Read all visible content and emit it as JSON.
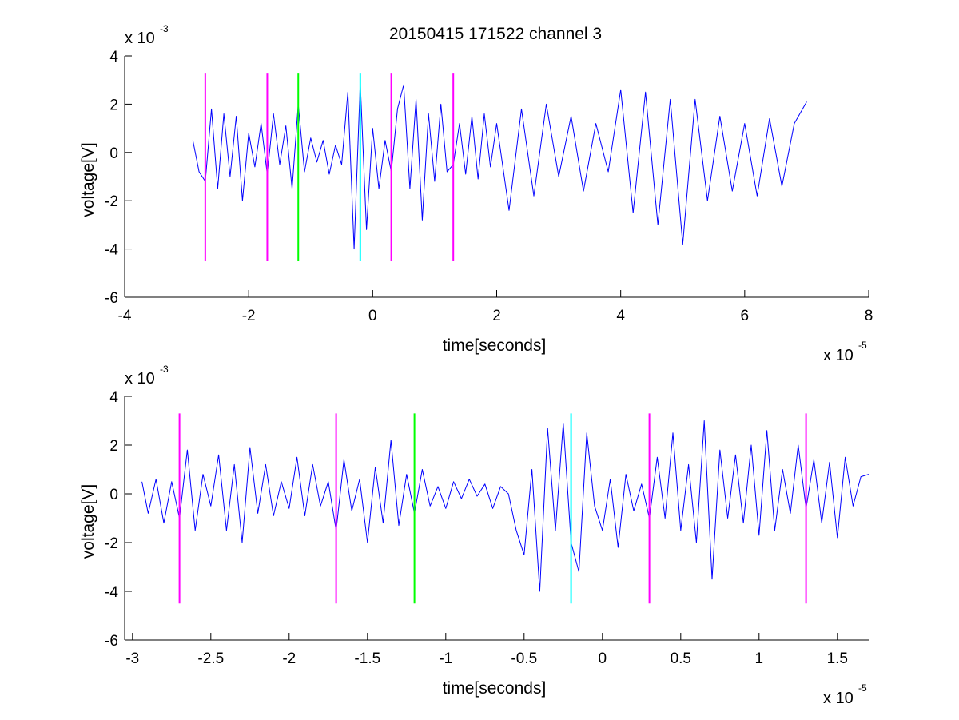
{
  "title": "20150415 171522 channel 3",
  "chart_data": [
    {
      "type": "line",
      "xlabel": "time[seconds]",
      "ylabel": "voltage[V]",
      "x_multiplier_label": "x 10",
      "x_multiplier_exp": "-5",
      "y_multiplier_label": "x 10",
      "y_multiplier_exp": "-3",
      "xlim": [
        -4,
        8
      ],
      "ylim": [
        -6,
        4
      ],
      "xticks": [
        -4,
        -2,
        0,
        2,
        4,
        6,
        8
      ],
      "xtick_labels": [
        "-4",
        "-2",
        "0",
        "2",
        "4",
        "6",
        "8"
      ],
      "yticks": [
        -6,
        -4,
        -2,
        0,
        2,
        4
      ],
      "ytick_labels": [
        "-6",
        "-4",
        "-2",
        "0",
        "2",
        "4"
      ],
      "signal_color": "#0000ff",
      "signal_x": [
        -2.9,
        -2.8,
        -2.7,
        -2.6,
        -2.5,
        -2.4,
        -2.3,
        -2.2,
        -2.1,
        -2.0,
        -1.9,
        -1.8,
        -1.7,
        -1.6,
        -1.5,
        -1.4,
        -1.3,
        -1.2,
        -1.1,
        -1.0,
        -0.9,
        -0.8,
        -0.7,
        -0.6,
        -0.5,
        -0.4,
        -0.3,
        -0.2,
        -0.1,
        0.0,
        0.1,
        0.2,
        0.3,
        0.4,
        0.5,
        0.6,
        0.7,
        0.8,
        0.9,
        1.0,
        1.1,
        1.2,
        1.3,
        1.4,
        1.5,
        1.6,
        1.7,
        1.8,
        1.9,
        2.0,
        2.2,
        2.4,
        2.6,
        2.8,
        3.0,
        3.2,
        3.4,
        3.6,
        3.8,
        4.0,
        4.2,
        4.4,
        4.6,
        4.8,
        5.0,
        5.2,
        5.4,
        5.6,
        5.8,
        6.0,
        6.2,
        6.4,
        6.6,
        6.8,
        7.0
      ],
      "signal_y": [
        0.5,
        -0.8,
        -1.2,
        1.8,
        -1.5,
        1.6,
        -1.0,
        1.5,
        -2.0,
        0.8,
        -0.6,
        1.2,
        -0.9,
        1.6,
        -0.5,
        1.1,
        -1.5,
        2.0,
        -0.8,
        0.6,
        -0.4,
        0.5,
        -0.9,
        0.3,
        -0.5,
        2.5,
        -4.0,
        2.9,
        -3.2,
        1.0,
        -1.5,
        0.5,
        -0.8,
        1.8,
        2.8,
        -1.5,
        2.2,
        -2.8,
        1.6,
        -1.2,
        2.0,
        -0.8,
        -0.5,
        1.2,
        -0.9,
        1.5,
        -1.1,
        1.6,
        -0.6,
        1.2,
        -2.4,
        1.8,
        -1.8,
        2.0,
        -1.0,
        1.5,
        -1.6,
        1.2,
        -0.8,
        2.6,
        -2.5,
        2.5,
        -3.0,
        2.2,
        -3.8,
        2.2,
        -2.0,
        1.5,
        -1.6,
        1.2,
        -1.8,
        1.4,
        -1.4,
        1.2,
        2.1
      ],
      "markers": [
        {
          "x": -2.7,
          "y0": -4.5,
          "y1": 3.3,
          "color": "#ff00ff"
        },
        {
          "x": -1.7,
          "y0": -4.5,
          "y1": 3.3,
          "color": "#ff00ff"
        },
        {
          "x": -1.2,
          "y0": -4.5,
          "y1": 3.3,
          "color": "#00ff00"
        },
        {
          "x": -0.2,
          "y0": -4.5,
          "y1": 3.3,
          "color": "#00ffff"
        },
        {
          "x": 0.3,
          "y0": -4.5,
          "y1": 3.3,
          "color": "#ff00ff"
        },
        {
          "x": 1.3,
          "y0": -4.5,
          "y1": 3.3,
          "color": "#ff00ff"
        }
      ]
    },
    {
      "type": "line",
      "xlabel": "time[seconds]",
      "ylabel": "voltage[V]",
      "x_multiplier_label": "x 10",
      "x_multiplier_exp": "-5",
      "y_multiplier_label": "x 10",
      "y_multiplier_exp": "-3",
      "xlim": [
        -3.05,
        1.7
      ],
      "ylim": [
        -6,
        4
      ],
      "xticks": [
        -3,
        -2.5,
        -2,
        -1.5,
        -1,
        -0.5,
        0,
        0.5,
        1,
        1.5
      ],
      "xtick_labels": [
        "-3",
        "-2.5",
        "-2",
        "-1.5",
        "-1",
        "-0.5",
        "0",
        "0.5",
        "1",
        "1.5"
      ],
      "yticks": [
        -6,
        -4,
        -2,
        0,
        2,
        4
      ],
      "ytick_labels": [
        "-6",
        "-4",
        "-2",
        "0",
        "2",
        "4"
      ],
      "signal_color": "#0000ff",
      "signal_x": [
        -2.94,
        -2.9,
        -2.85,
        -2.8,
        -2.75,
        -2.7,
        -2.65,
        -2.6,
        -2.55,
        -2.5,
        -2.45,
        -2.4,
        -2.35,
        -2.3,
        -2.25,
        -2.2,
        -2.15,
        -2.1,
        -2.05,
        -2.0,
        -1.95,
        -1.9,
        -1.85,
        -1.8,
        -1.75,
        -1.7,
        -1.65,
        -1.6,
        -1.55,
        -1.5,
        -1.45,
        -1.4,
        -1.35,
        -1.3,
        -1.25,
        -1.2,
        -1.15,
        -1.1,
        -1.05,
        -1.0,
        -0.95,
        -0.9,
        -0.85,
        -0.8,
        -0.75,
        -0.7,
        -0.65,
        -0.6,
        -0.55,
        -0.5,
        -0.45,
        -0.4,
        -0.35,
        -0.3,
        -0.25,
        -0.2,
        -0.15,
        -0.1,
        -0.05,
        0.0,
        0.05,
        0.1,
        0.15,
        0.2,
        0.25,
        0.3,
        0.35,
        0.4,
        0.45,
        0.5,
        0.55,
        0.6,
        0.65,
        0.7,
        0.75,
        0.8,
        0.85,
        0.9,
        0.95,
        1.0,
        1.05,
        1.1,
        1.15,
        1.2,
        1.25,
        1.3,
        1.35,
        1.4,
        1.45,
        1.5,
        1.55,
        1.6,
        1.65,
        1.7
      ],
      "signal_y": [
        0.5,
        -0.8,
        0.6,
        -1.2,
        0.5,
        -1.0,
        1.8,
        -1.5,
        0.8,
        -0.5,
        1.6,
        -1.5,
        1.2,
        -2.0,
        1.9,
        -0.8,
        1.2,
        -0.9,
        0.5,
        -0.6,
        1.5,
        -0.9,
        1.2,
        -0.5,
        0.5,
        -1.5,
        1.4,
        -0.7,
        0.6,
        -2.0,
        1.1,
        -1.2,
        2.2,
        -1.3,
        0.8,
        -0.8,
        1.0,
        -0.5,
        0.3,
        -0.6,
        0.5,
        -0.2,
        0.6,
        -0.1,
        0.4,
        -0.6,
        0.3,
        0.0,
        -1.5,
        -2.5,
        1.0,
        -4.0,
        2.7,
        -1.5,
        2.9,
        -2.0,
        -3.2,
        2.5,
        -0.5,
        -1.5,
        0.6,
        -2.2,
        0.8,
        -0.7,
        0.4,
        -1.0,
        1.5,
        -1.0,
        2.5,
        -1.5,
        1.2,
        -2.0,
        3.0,
        -3.5,
        1.8,
        -1.0,
        1.6,
        -1.2,
        2.0,
        -1.7,
        2.6,
        -1.5,
        1.0,
        -0.8,
        2.0,
        -0.6,
        1.4,
        -1.2,
        1.3,
        -1.8,
        1.5,
        -0.5,
        0.7,
        0.8
      ],
      "markers": [
        {
          "x": -2.7,
          "y0": -4.5,
          "y1": 3.3,
          "color": "#ff00ff"
        },
        {
          "x": -1.7,
          "y0": -4.5,
          "y1": 3.3,
          "color": "#ff00ff"
        },
        {
          "x": -1.2,
          "y0": -4.5,
          "y1": 3.3,
          "color": "#00ff00"
        },
        {
          "x": -0.2,
          "y0": -4.5,
          "y1": 3.3,
          "color": "#00ffff"
        },
        {
          "x": 0.3,
          "y0": -4.5,
          "y1": 3.3,
          "color": "#ff00ff"
        },
        {
          "x": 1.3,
          "y0": -4.5,
          "y1": 3.3,
          "color": "#ff00ff"
        }
      ]
    }
  ]
}
